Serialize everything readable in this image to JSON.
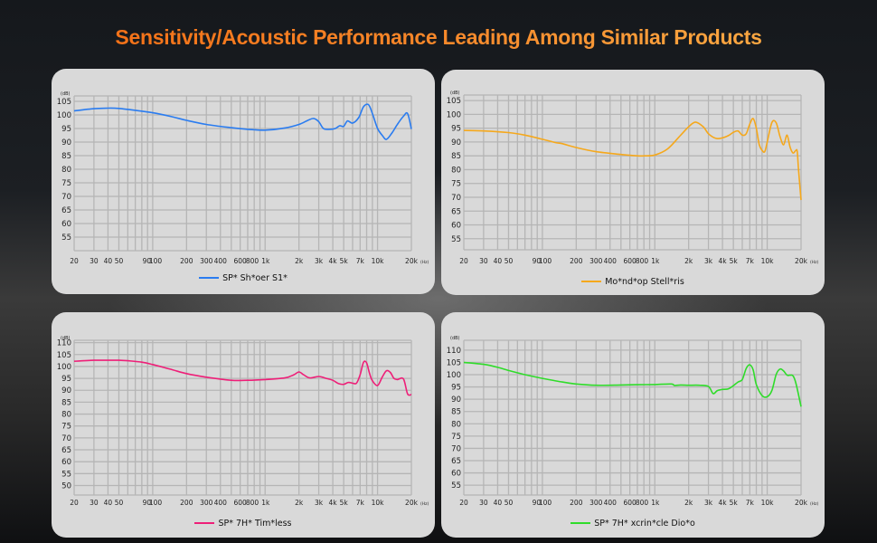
{
  "title": "Sensitivity/Acoustic Performance Leading Among Similar Products",
  "chart_data": [
    {
      "type": "line",
      "title": "",
      "xlabel": "Hz",
      "ylabel": "dB",
      "xscale": "log",
      "xlim": [
        20,
        20000
      ],
      "ylim": [
        50,
        107
      ],
      "grid": true,
      "legend_position": "bottom-center",
      "x_tick_labels": [
        "20",
        "30",
        "40",
        "50",
        "90",
        "100",
        "200",
        "300",
        "400",
        "600",
        "800",
        "1k",
        "2k",
        "3k",
        "4k",
        "5k",
        "7k",
        "10k",
        "20k"
      ],
      "x_unit_label": "(Hz)",
      "y_unit_label": "(dB)",
      "y_ticks": [
        105,
        100,
        95,
        90,
        85,
        80,
        75,
        70,
        65,
        60,
        55
      ],
      "series": [
        {
          "name": "SP* Sh*oer S1*",
          "color": "#2a7cf0",
          "x": [
            20,
            30,
            40,
            50,
            70,
            100,
            150,
            200,
            300,
            500,
            700,
            1000,
            1500,
            2000,
            2400,
            2700,
            3000,
            3300,
            3700,
            4200,
            4600,
            5000,
            5400,
            6000,
            6800,
            7500,
            8300,
            9000,
            10000,
            11000,
            12000,
            13500,
            15000,
            17000,
            18500,
            20000
          ],
          "y": [
            101.5,
            102.3,
            102.5,
            102.4,
            101.7,
            100.8,
            99.3,
            98,
            96.5,
            95.3,
            94.7,
            94.4,
            95.2,
            96.5,
            98,
            98.7,
            97.5,
            95,
            94.7,
            95,
            96,
            95.8,
            97.8,
            97,
            99,
            103,
            103.8,
            100.5,
            95,
            92.5,
            91,
            93.5,
            96.5,
            99.5,
            100.5,
            94.8
          ]
        }
      ]
    },
    {
      "type": "line",
      "title": "",
      "xlabel": "Hz",
      "ylabel": "dB",
      "xscale": "log",
      "xlim": [
        20,
        20000
      ],
      "ylim": [
        51,
        107
      ],
      "grid": true,
      "legend_position": "bottom-center",
      "x_tick_labels": [
        "20",
        "30",
        "40",
        "50",
        "90",
        "100",
        "200",
        "300",
        "400",
        "600",
        "800",
        "1k",
        "2k",
        "3k",
        "4k",
        "5k",
        "7k",
        "10k",
        "20k"
      ],
      "x_unit_label": "(Hz)",
      "y_unit_label": "(dB)",
      "y_ticks": [
        105,
        100,
        95,
        90,
        85,
        80,
        75,
        70,
        65,
        60,
        55
      ],
      "series": [
        {
          "name": "Mo*nd*op Stell*ris",
          "color": "#f5a81c",
          "x": [
            20,
            30,
            50,
            70,
            100,
            130,
            150,
            200,
            300,
            500,
            700,
            800,
            1000,
            1300,
            1700,
            2000,
            2300,
            2700,
            3000,
            3500,
            4000,
            4500,
            5000,
            5500,
            6000,
            6500,
            7000,
            7500,
            8000,
            8500,
            9000,
            9500,
            10000,
            11000,
            12000,
            13000,
            14000,
            15000,
            16000,
            17000,
            18000,
            18500,
            19000,
            20000
          ],
          "y": [
            94.2,
            94,
            93.4,
            92.5,
            91,
            89.8,
            89.4,
            88,
            86.5,
            85.5,
            85,
            85,
            85.3,
            87.5,
            92.5,
            95.5,
            97.2,
            95.5,
            93,
            91.3,
            91.5,
            92.3,
            93.5,
            94,
            92.5,
            93,
            96.5,
            98.5,
            95,
            89,
            87,
            86.5,
            90,
            97,
            97,
            92,
            89,
            92.5,
            88,
            86,
            87,
            86.5,
            80,
            69
          ]
        }
      ]
    },
    {
      "type": "line",
      "title": "",
      "xlabel": "Hz",
      "ylabel": "dB",
      "xscale": "log",
      "xlim": [
        20,
        20000
      ],
      "ylim": [
        46,
        111
      ],
      "grid": true,
      "legend_position": "bottom-center",
      "x_tick_labels": [
        "20",
        "30",
        "40",
        "50",
        "90",
        "100",
        "200",
        "300",
        "400",
        "600",
        "800",
        "1k",
        "2k",
        "3k",
        "4k",
        "5k",
        "7k",
        "10k",
        "20k"
      ],
      "x_unit_label": "(Hz)",
      "y_unit_label": "(dB)",
      "y_ticks": [
        110,
        105,
        100,
        95,
        90,
        85,
        80,
        75,
        70,
        65,
        60,
        55,
        50
      ],
      "series": [
        {
          "name": "SP* 7H* Tim*less",
          "color": "#ee1f78",
          "x": [
            20,
            30,
            40,
            50,
            60,
            80,
            100,
            150,
            200,
            300,
            500,
            700,
            1000,
            1500,
            1800,
            2000,
            2200,
            2500,
            3000,
            3500,
            4000,
            4500,
            5000,
            5500,
            6000,
            6500,
            7000,
            7500,
            8000,
            8500,
            9000,
            10000,
            11000,
            12000,
            13000,
            14000,
            15000,
            17000,
            18500,
            20000
          ],
          "y": [
            102.2,
            102.6,
            102.6,
            102.6,
            102.4,
            101.8,
            100.8,
            98.6,
            97,
            95.5,
            94.2,
            94.2,
            94.5,
            95.2,
            96.5,
            97.7,
            96.5,
            95.2,
            95.8,
            95,
            94.2,
            92.8,
            92.5,
            93.3,
            93,
            93,
            96.5,
            101.7,
            101.5,
            97,
            94,
            92,
            95.5,
            98.2,
            97.5,
            95,
            94.5,
            94.8,
            88.5,
            88.2
          ]
        }
      ]
    },
    {
      "type": "line",
      "title": "",
      "xlabel": "Hz",
      "ylabel": "dB",
      "xscale": "log",
      "xlim": [
        20,
        20000
      ],
      "ylim": [
        51,
        114
      ],
      "grid": true,
      "legend_position": "bottom-center",
      "x_tick_labels": [
        "20",
        "30",
        "40",
        "50",
        "90",
        "100",
        "200",
        "300",
        "400",
        "600",
        "800",
        "1k",
        "2k",
        "3k",
        "4k",
        "5k",
        "7k",
        "10k",
        "20k"
      ],
      "x_unit_label": "(Hz)",
      "y_unit_label": "(dB)",
      "y_ticks": [
        110,
        105,
        100,
        95,
        90,
        85,
        80,
        75,
        70,
        65,
        60,
        55
      ],
      "series": [
        {
          "name": "SP* 7H* xcrin*cle Dio*o",
          "color": "#2fdc2a",
          "x": [
            20,
            30,
            40,
            50,
            70,
            100,
            150,
            200,
            300,
            500,
            700,
            1000,
            1400,
            1500,
            1700,
            2000,
            2500,
            3000,
            3300,
            3600,
            4000,
            4500,
            5000,
            5500,
            6000,
            6500,
            7000,
            7500,
            8000,
            9000,
            10000,
            11000,
            12000,
            13000,
            14000,
            15000,
            16000,
            17000,
            18000,
            20000
          ],
          "y": [
            105,
            104.2,
            103,
            101.7,
            100,
            98.5,
            97,
            96.2,
            95.7,
            95.8,
            95.9,
            96,
            96.2,
            95.6,
            95.8,
            95.7,
            95.7,
            95.2,
            92.3,
            93.5,
            94,
            94.2,
            95.5,
            97,
            98,
            102.5,
            104,
            102,
            96,
            91.5,
            91,
            93.5,
            100,
            102.3,
            101.5,
            99.8,
            99.8,
            99.5,
            96.5,
            87
          ]
        }
      ]
    }
  ]
}
